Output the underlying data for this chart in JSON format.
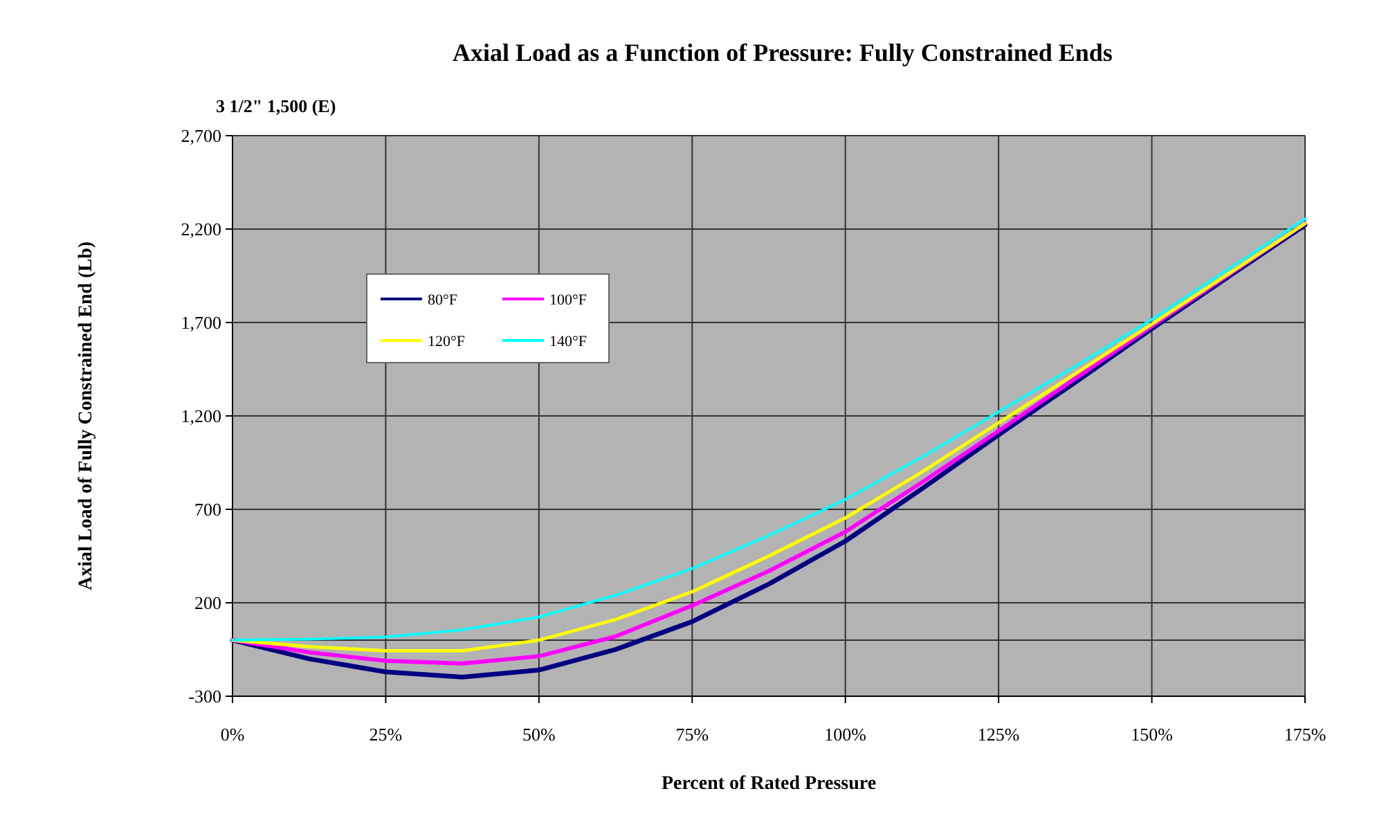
{
  "chart_data": {
    "type": "line",
    "title": "Axial Load as a Function of Pressure: Fully Constrained Ends",
    "subtitle": "3 1/2\" 1,500 (E)",
    "xlabel": "Percent of Rated Pressure",
    "ylabel": "Axial Load of Fully Constrained End (Lb)",
    "x": [
      0,
      12.5,
      25,
      37.5,
      50,
      62.5,
      75,
      87.5,
      100,
      112.5,
      125,
      137.5,
      150,
      162.5,
      175
    ],
    "series": [
      {
        "name": "80°F",
        "color": "#000080",
        "values": [
          0,
          -100,
          -170,
          -198,
          -160,
          -50,
          99,
          300,
          530,
          810,
          1099,
          1380,
          1667,
          1945,
          2222
        ]
      },
      {
        "name": "100°F",
        "color": "#ff00ff",
        "values": [
          0,
          -65,
          -111,
          -125,
          -86,
          20,
          185,
          370,
          580,
          845,
          1120,
          1400,
          1680,
          1955,
          2230
        ]
      },
      {
        "name": "120°F",
        "color": "#ffff00",
        "values": [
          0,
          -35,
          -57,
          -57,
          0,
          110,
          259,
          450,
          654,
          900,
          1163,
          1425,
          1691,
          1960,
          2230
        ]
      },
      {
        "name": "140°F",
        "color": "#00ffff",
        "values": [
          0,
          5,
          17,
          55,
          124,
          240,
          383,
          560,
          753,
          980,
          1222,
          1465,
          1716,
          1985,
          2255
        ]
      }
    ],
    "xlim": [
      0,
      175
    ],
    "xticks": [
      {
        "value": 0,
        "label": "0%"
      },
      {
        "value": 25,
        "label": "25%"
      },
      {
        "value": 50,
        "label": "50%"
      },
      {
        "value": 75,
        "label": "75%"
      },
      {
        "value": 100,
        "label": "100%"
      },
      {
        "value": 125,
        "label": "125%"
      },
      {
        "value": 150,
        "label": "150%"
      },
      {
        "value": 175,
        "label": "175%"
      }
    ],
    "ylim": [
      -300,
      2700
    ],
    "yticks": [
      {
        "value": -300,
        "label": "-300"
      },
      {
        "value": 200,
        "label": "200"
      },
      {
        "value": 700,
        "label": "700"
      },
      {
        "value": 1200,
        "label": "1,200"
      },
      {
        "value": 1700,
        "label": "1,700"
      },
      {
        "value": 2200,
        "label": "2,200"
      },
      {
        "value": 2700,
        "label": "2,700"
      }
    ],
    "ref_lines": [
      {
        "axis": "y",
        "value": 0,
        "color": "#333333"
      }
    ],
    "grid": true,
    "legend": "top left",
    "marker": "none",
    "line_style": "solid"
  }
}
